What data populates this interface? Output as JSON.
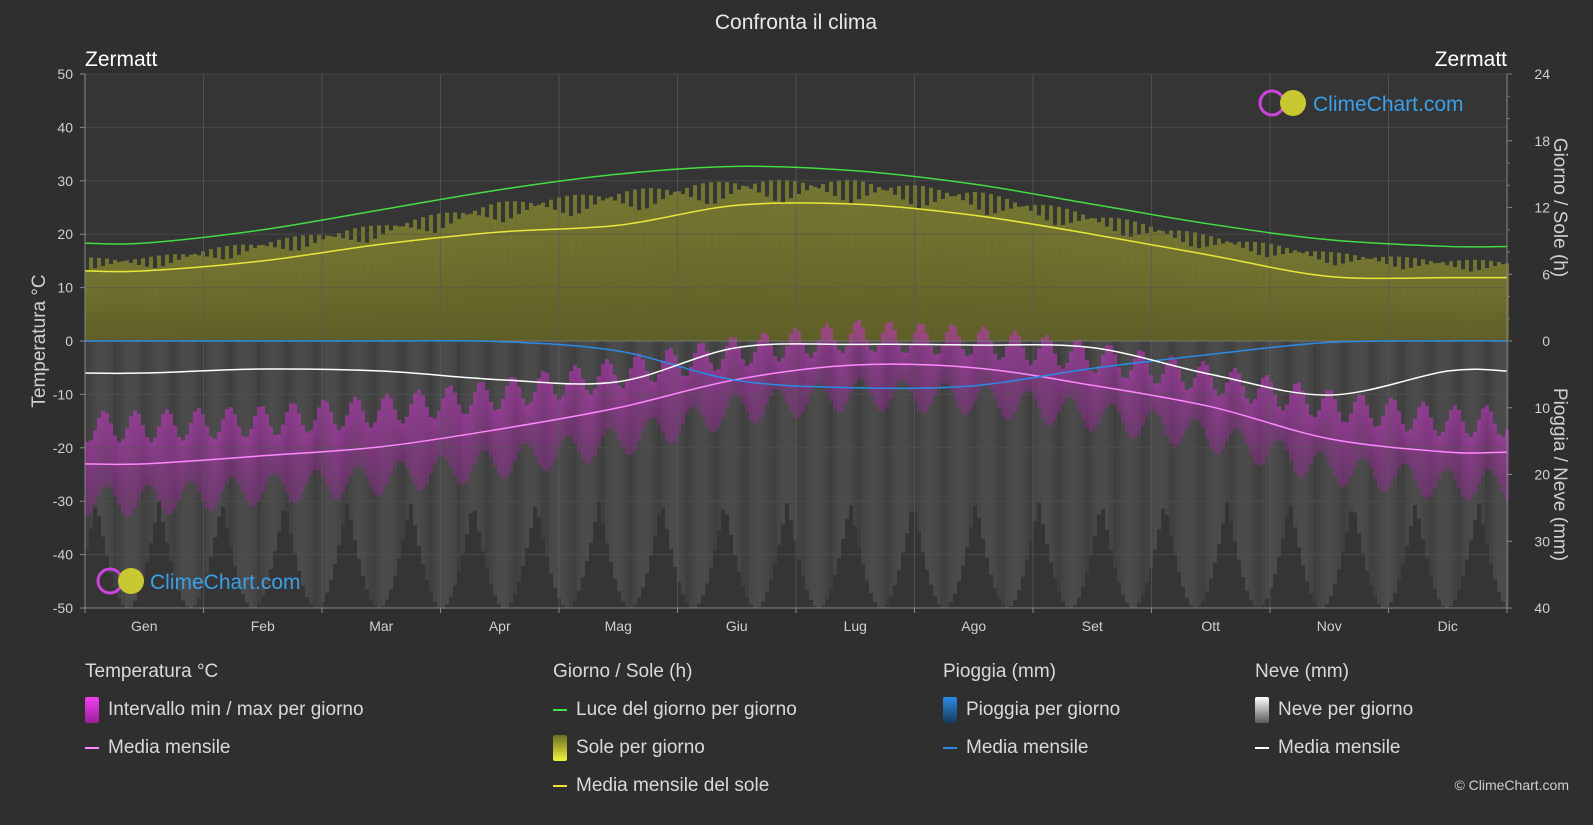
{
  "title": "Confronta il clima",
  "location_left": "Zermatt",
  "location_right": "Zermatt",
  "watermark": "ClimeChart.com",
  "copyright": "© ClimeChart.com",
  "colors": {
    "background": "#2f2f2f",
    "daylight": "#44dd44",
    "sunshine_fill": "#b5b52e",
    "sunshine_line": "#e8e83a",
    "temp_range": "#cc33cc",
    "temp_line": "#ff88ff",
    "rain_line": "#2a8be6",
    "rain_bar": "#1e6fbf",
    "snow_line": "#ffffff",
    "snow_bar": "#9a9a9a",
    "watermark": "#3aa0e8"
  },
  "legend": {
    "groups": [
      {
        "title": "Temperatura °C",
        "items": [
          {
            "label": "Intervallo min / max per giorno",
            "swatch": "rect",
            "color": "#d630d6"
          },
          {
            "label": "Media mensile",
            "swatch": "line",
            "color": "#ff88ff"
          }
        ]
      },
      {
        "title": "Giorno / Sole (h)",
        "items": [
          {
            "label": "Luce del giorno per giorno",
            "swatch": "line",
            "color": "#44dd44"
          },
          {
            "label": "Sole per giorno",
            "swatch": "rect",
            "color": "#c8c83a"
          },
          {
            "label": "Media mensile del sole",
            "swatch": "line",
            "color": "#e8e83a"
          }
        ]
      },
      {
        "title": "Pioggia (mm)",
        "items": [
          {
            "label": "Pioggia per giorno",
            "swatch": "rect",
            "color": "#2a8be6"
          },
          {
            "label": "Media mensile",
            "swatch": "line",
            "color": "#2a8be6"
          }
        ]
      },
      {
        "title": "Neve (mm)",
        "items": [
          {
            "label": "Neve per giorno",
            "swatch": "rect",
            "color": "#d8d8d8"
          },
          {
            "label": "Media mensile",
            "swatch": "line",
            "color": "#ffffff"
          }
        ]
      }
    ]
  },
  "chart_data": {
    "type": "line",
    "title": "Confronta il clima",
    "categories": [
      "Gen",
      "Feb",
      "Mar",
      "Apr",
      "Mag",
      "Giu",
      "Lug",
      "Ago",
      "Set",
      "Ott",
      "Nov",
      "Dic"
    ],
    "left_axis": {
      "label": "Temperatura °C",
      "range": [
        -50,
        50
      ],
      "ticks": [
        50,
        40,
        30,
        20,
        10,
        0,
        -10,
        -20,
        -30,
        -40,
        -50
      ]
    },
    "right_axis_top": {
      "label": "Giorno / Sole (h)",
      "range": [
        0,
        24
      ],
      "ticks": [
        24,
        18,
        12,
        6,
        0
      ]
    },
    "right_axis_bottom": {
      "label": "Pioggia / Neve (mm)",
      "range": [
        0,
        40
      ],
      "ticks": [
        0,
        10,
        20,
        30,
        40
      ]
    },
    "grid": true,
    "series": [
      {
        "name": "Luce del giorno per giorno",
        "axis": "sun_hours",
        "values": [
          8.8,
          10.0,
          11.8,
          13.6,
          15.0,
          15.7,
          15.3,
          14.1,
          12.3,
          10.5,
          9.1,
          8.5
        ]
      },
      {
        "name": "Media mensile del sole",
        "axis": "sun_hours",
        "values": [
          6.3,
          7.2,
          8.7,
          9.8,
          10.4,
          12.2,
          12.3,
          11.3,
          9.6,
          7.7,
          5.8,
          5.7
        ]
      },
      {
        "name": "Media mensile",
        "group": "Temperatura °C",
        "axis": "temperature",
        "values": [
          -23.0,
          -21.5,
          -19.8,
          -16.5,
          -12.5,
          -7.2,
          -4.5,
          -5.0,
          -8.3,
          -12.3,
          -18.3,
          -20.8
        ]
      },
      {
        "name": "Media mensile",
        "group": "Pioggia (mm)",
        "axis": "precip_mm",
        "values": [
          0.0,
          0.0,
          0.0,
          0.1,
          1.5,
          5.9,
          7.0,
          6.7,
          4.1,
          2.0,
          0.2,
          0.0
        ]
      },
      {
        "name": "Media mensile",
        "group": "Neve (mm)",
        "axis": "precip_mm",
        "values": [
          4.8,
          4.2,
          4.5,
          5.8,
          6.1,
          1.0,
          0.5,
          0.6,
          1.0,
          5.0,
          8.1,
          4.5
        ]
      }
    ],
    "daily_bands": {
      "sunshine_per_day_max_hours": [
        7.5,
        9.0,
        10.5,
        12.5,
        13.5,
        14.5,
        14.5,
        13.5,
        11.5,
        9.5,
        8.0,
        7.3
      ],
      "temp_max_per_day": [
        -16,
        -15,
        -13,
        -10,
        -6,
        -2,
        1,
        0,
        -3,
        -7,
        -12,
        -15
      ],
      "temp_min_per_day": [
        -30,
        -28,
        -26,
        -23,
        -19,
        -13,
        -10,
        -11,
        -14,
        -18,
        -24,
        -27
      ]
    }
  }
}
